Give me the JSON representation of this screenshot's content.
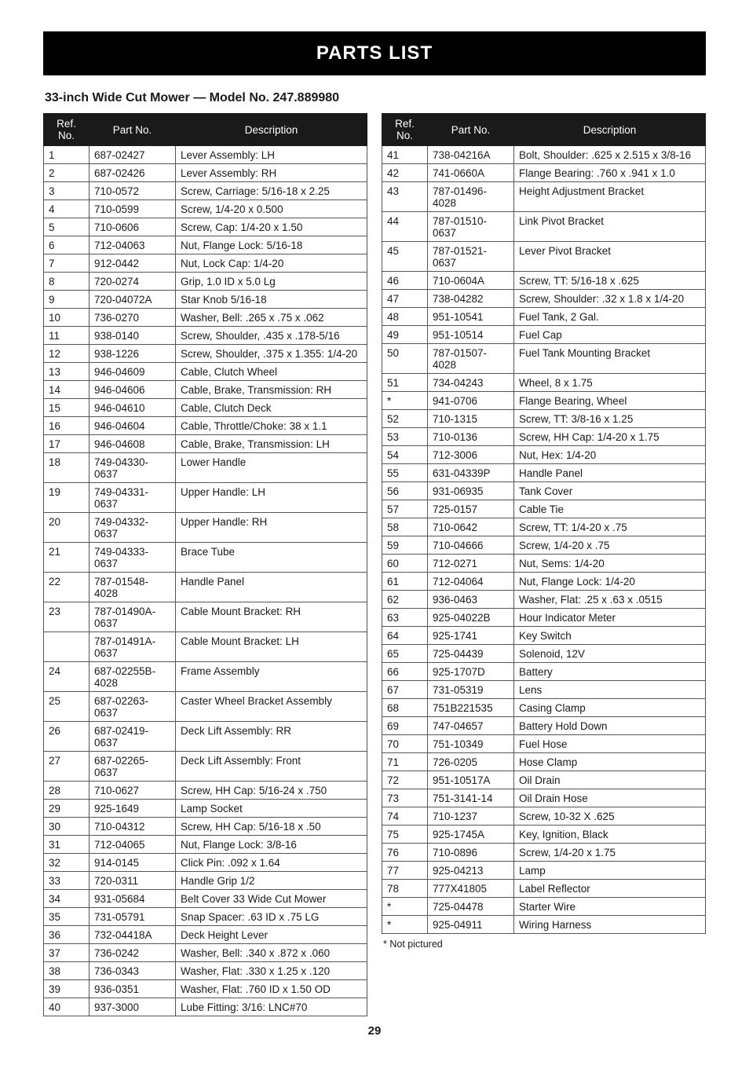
{
  "banner_title": "PARTS LIST",
  "subtitle": "33-inch Wide Cut Mower — Model No. 247.889980",
  "headers": {
    "ref": "Ref. No.",
    "part": "Part No.",
    "desc": "Description"
  },
  "note": "* Not pictured",
  "page_number": "29",
  "left": [
    {
      "r": "1",
      "p": "687-02427",
      "d": "Lever Assembly: LH"
    },
    {
      "r": "2",
      "p": "687-02426",
      "d": "Lever Assembly: RH"
    },
    {
      "r": "3",
      "p": "710-0572",
      "d": "Screw, Carriage: 5/16-18 x 2.25"
    },
    {
      "r": "4",
      "p": "710-0599",
      "d": "Screw, 1/4-20 x 0.500"
    },
    {
      "r": "5",
      "p": "710-0606",
      "d": "Screw, Cap: 1/4-20 x 1.50"
    },
    {
      "r": "6",
      "p": "712-04063",
      "d": "Nut, Flange Lock: 5/16-18"
    },
    {
      "r": "7",
      "p": "912-0442",
      "d": "Nut, Lock Cap: 1/4-20"
    },
    {
      "r": "8",
      "p": "720-0274",
      "d": "Grip, 1.0 ID x 5.0 Lg"
    },
    {
      "r": "9",
      "p": "720-04072A",
      "d": "Star Knob 5/16-18"
    },
    {
      "r": "10",
      "p": "736-0270",
      "d": "Washer, Bell: .265 x .75 x .062"
    },
    {
      "r": "11",
      "p": "938-0140",
      "d": "Screw, Shoulder, .435 x .178-5/16"
    },
    {
      "r": "12",
      "p": "938-1226",
      "d": "Screw, Shoulder, .375 x 1.355: 1/4-20"
    },
    {
      "r": "13",
      "p": "946-04609",
      "d": "Cable, Clutch Wheel"
    },
    {
      "r": "14",
      "p": "946-04606",
      "d": "Cable, Brake, Transmission: RH"
    },
    {
      "r": "15",
      "p": "946-04610",
      "d": "Cable, Clutch Deck"
    },
    {
      "r": "16",
      "p": "946-04604",
      "d": "Cable, Throttle/Choke: 38 x 1.1"
    },
    {
      "r": "17",
      "p": "946-04608",
      "d": "Cable, Brake, Transmission: LH"
    },
    {
      "r": "18",
      "p": "749-04330-0637",
      "d": "Lower Handle"
    },
    {
      "r": "19",
      "p": "749-04331-0637",
      "d": "Upper Handle: LH"
    },
    {
      "r": "20",
      "p": "749-04332-0637",
      "d": "Upper Handle: RH"
    },
    {
      "r": "21",
      "p": "749-04333-0637",
      "d": "Brace Tube"
    },
    {
      "r": "22",
      "p": "787-01548-4028",
      "d": "Handle Panel"
    },
    {
      "r": "23",
      "p": "787-01490A-0637",
      "d": "Cable Mount Bracket: RH"
    },
    {
      "r": "",
      "p": "787-01491A-0637",
      "d": "Cable Mount Bracket: LH"
    },
    {
      "r": "24",
      "p": "687-02255B-4028",
      "d": "Frame Assembly"
    },
    {
      "r": "25",
      "p": "687-02263-0637",
      "d": "Caster Wheel Bracket Assembly"
    },
    {
      "r": "26",
      "p": "687-02419-0637",
      "d": "Deck Lift Assembly: RR"
    },
    {
      "r": "27",
      "p": "687-02265-0637",
      "d": "Deck Lift Assembly: Front"
    },
    {
      "r": "28",
      "p": "710-0627",
      "d": "Screw, HH Cap: 5/16-24 x .750"
    },
    {
      "r": "29",
      "p": "925-1649",
      "d": "Lamp Socket"
    },
    {
      "r": "30",
      "p": "710-04312",
      "d": "Screw, HH Cap: 5/16-18 x .50"
    },
    {
      "r": "31",
      "p": "712-04065",
      "d": "Nut, Flange Lock: 3/8-16"
    },
    {
      "r": "32",
      "p": "914-0145",
      "d": "Click Pin: .092 x 1.64"
    },
    {
      "r": "33",
      "p": "720-0311",
      "d": "Handle Grip 1/2"
    },
    {
      "r": "34",
      "p": "931-05684",
      "d": "Belt Cover 33 Wide Cut Mower"
    },
    {
      "r": "35",
      "p": "731-05791",
      "d": "Snap Spacer: .63 ID x .75 LG"
    },
    {
      "r": "36",
      "p": "732-04418A",
      "d": "Deck Height Lever"
    },
    {
      "r": "37",
      "p": "736-0242",
      "d": "Washer, Bell: .340 x .872 x .060"
    },
    {
      "r": "38",
      "p": "736-0343",
      "d": "Washer, Flat: .330 x 1.25 x .120"
    },
    {
      "r": "39",
      "p": "936-0351",
      "d": "Washer, Flat: .760 ID x 1.50 OD"
    },
    {
      "r": "40",
      "p": "937-3000",
      "d": "Lube Fitting: 3/16: LNC#70"
    }
  ],
  "right": [
    {
      "r": "41",
      "p": "738-04216A",
      "d": "Bolt, Shoulder: .625 x 2.515 x 3/8-16"
    },
    {
      "r": "42",
      "p": "741-0660A",
      "d": "Flange Bearing: .760 x .941 x 1.0"
    },
    {
      "r": "43",
      "p": "787-01496-4028",
      "d": "Height Adjustment Bracket"
    },
    {
      "r": "44",
      "p": "787-01510-0637",
      "d": "Link Pivot Bracket"
    },
    {
      "r": "45",
      "p": "787-01521-0637",
      "d": "Lever Pivot Bracket"
    },
    {
      "r": "46",
      "p": "710-0604A",
      "d": "Screw, TT: 5/16-18 x .625"
    },
    {
      "r": "47",
      "p": "738-04282",
      "d": "Screw, Shoulder: .32 x 1.8 x 1/4-20"
    },
    {
      "r": "48",
      "p": "951-10541",
      "d": "Fuel Tank, 2 Gal."
    },
    {
      "r": "49",
      "p": "951-10514",
      "d": "Fuel Cap"
    },
    {
      "r": "50",
      "p": "787-01507-4028",
      "d": "Fuel Tank Mounting Bracket"
    },
    {
      "r": "51",
      "p": "734-04243",
      "d": "Wheel, 8 x 1.75"
    },
    {
      "r": "*",
      "p": "941-0706",
      "d": "Flange Bearing, Wheel"
    },
    {
      "r": "52",
      "p": "710-1315",
      "d": "Screw, TT: 3/8-16 x 1.25"
    },
    {
      "r": "53",
      "p": "710-0136",
      "d": "Screw, HH Cap: 1/4-20 x 1.75"
    },
    {
      "r": "54",
      "p": "712-3006",
      "d": "Nut, Hex: 1/4-20"
    },
    {
      "r": "55",
      "p": "631-04339P",
      "d": "Handle Panel"
    },
    {
      "r": "56",
      "p": "931-06935",
      "d": "Tank Cover"
    },
    {
      "r": "57",
      "p": "725-0157",
      "d": "Cable Tie"
    },
    {
      "r": "58",
      "p": "710-0642",
      "d": "Screw, TT: 1/4-20 x .75"
    },
    {
      "r": "59",
      "p": "710-04666",
      "d": "Screw, 1/4-20 x .75"
    },
    {
      "r": "60",
      "p": "712-0271",
      "d": "Nut, Sems: 1/4-20"
    },
    {
      "r": "61",
      "p": "712-04064",
      "d": "Nut, Flange Lock: 1/4-20"
    },
    {
      "r": "62",
      "p": "936-0463",
      "d": "Washer, Flat: .25 x .63 x .0515"
    },
    {
      "r": "63",
      "p": "925-04022B",
      "d": "Hour Indicator Meter"
    },
    {
      "r": "64",
      "p": "925-1741",
      "d": "Key Switch"
    },
    {
      "r": "65",
      "p": "725-04439",
      "d": "Solenoid, 12V"
    },
    {
      "r": "66",
      "p": "925-1707D",
      "d": "Battery"
    },
    {
      "r": "67",
      "p": "731-05319",
      "d": "Lens"
    },
    {
      "r": "68",
      "p": "751B221535",
      "d": "Casing Clamp"
    },
    {
      "r": "69",
      "p": "747-04657",
      "d": "Battery Hold Down"
    },
    {
      "r": "70",
      "p": "751-10349",
      "d": "Fuel Hose"
    },
    {
      "r": "71",
      "p": "726-0205",
      "d": "Hose Clamp"
    },
    {
      "r": "72",
      "p": "951-10517A",
      "d": "Oil Drain"
    },
    {
      "r": "73",
      "p": "751-3141-14",
      "d": "Oil Drain Hose"
    },
    {
      "r": "74",
      "p": "710-1237",
      "d": "Screw, 10-32 X .625"
    },
    {
      "r": "75",
      "p": "925-1745A",
      "d": "Key, Ignition, Black"
    },
    {
      "r": "76",
      "p": "710-0896",
      "d": "Screw, 1/4-20 x 1.75"
    },
    {
      "r": "77",
      "p": "925-04213",
      "d": "Lamp"
    },
    {
      "r": "78",
      "p": "777X41805",
      "d": "Label Reflector"
    },
    {
      "r": "*",
      "p": "725-04478",
      "d": "Starter Wire"
    },
    {
      "r": "*",
      "p": "925-04911",
      "d": "Wiring Harness"
    }
  ]
}
